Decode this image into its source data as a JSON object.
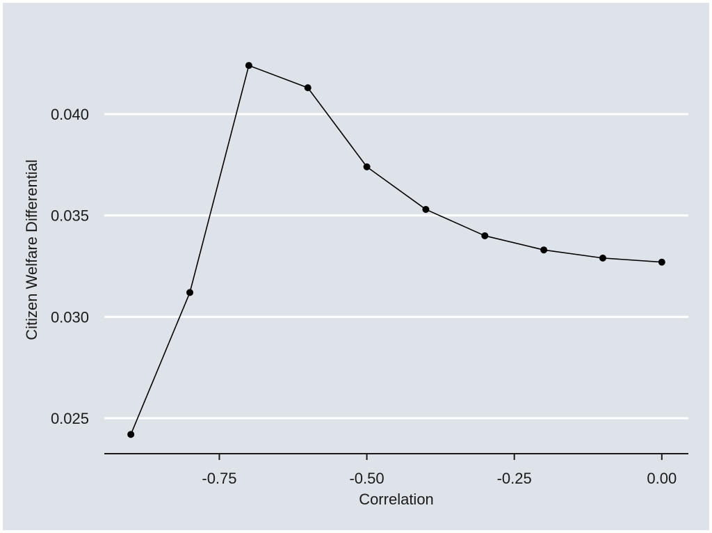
{
  "chart_data": {
    "type": "line",
    "title": "",
    "xlabel": "Correlation",
    "ylabel": "Citizen Welfare Differential",
    "x": [
      -0.9,
      -0.8,
      -0.7,
      -0.6,
      -0.5,
      -0.4,
      -0.3,
      -0.2,
      -0.1,
      0.0
    ],
    "series": [
      {
        "values": [
          0.0242,
          0.0312,
          0.0424,
          0.0413,
          0.0374,
          0.0353,
          0.034,
          0.0333,
          0.0329,
          0.0327
        ]
      }
    ],
    "xlim": [
      -0.945,
      0.045
    ],
    "ylim": [
      0.02325,
      0.0446
    ],
    "xticks": [
      -0.75,
      -0.5,
      -0.25,
      0.0
    ],
    "xtick_labels": [
      "-0.75",
      "-0.50",
      "-0.25",
      "0.00"
    ],
    "yticks": [
      0.025,
      0.03,
      0.035,
      0.04
    ],
    "ytick_labels": [
      "0.025",
      "0.030",
      "0.035",
      "0.040"
    ],
    "grid": "horizontal",
    "colors": {
      "background": "#dde3e9",
      "grid": "#ffffff",
      "line": "#000000",
      "axis": "#1a1a1a"
    }
  }
}
